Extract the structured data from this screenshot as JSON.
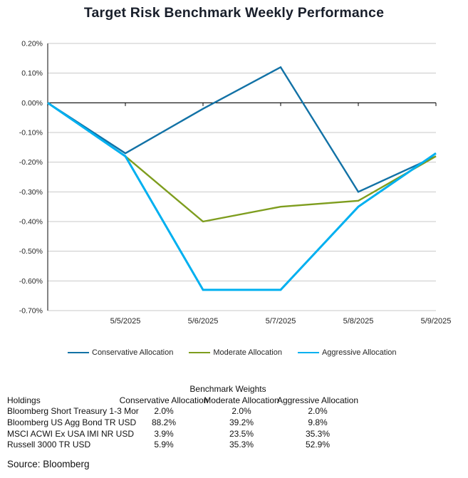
{
  "title": "Target Risk Benchmark Weekly Performance",
  "chart_data": {
    "type": "line",
    "title": "Target Risk Benchmark Weekly Performance",
    "x_labels": [
      "",
      "5/5/2025",
      "5/6/2025",
      "5/7/2025",
      "5/8/2025",
      "5/9/2025"
    ],
    "y_tick_labels": [
      "0.20%",
      "0.10%",
      "0.00%",
      "-0.10%",
      "-0.20%",
      "-0.30%",
      "-0.40%",
      "-0.50%",
      "-0.60%",
      "-0.70%"
    ],
    "y_tick_values": [
      0.2,
      0.1,
      0.0,
      -0.1,
      -0.2,
      -0.3,
      -0.4,
      -0.5,
      -0.6,
      -0.7
    ],
    "ylim": [
      -0.7,
      0.2
    ],
    "grid": "horizontal",
    "legend_position": "bottom",
    "series": [
      {
        "name": "Conservative Allocation",
        "color": "#1272A6",
        "values": [
          0.0,
          -0.17,
          -0.02,
          0.12,
          -0.3,
          -0.18
        ]
      },
      {
        "name": "Moderate Allocation",
        "color": "#7E9D1E",
        "values": [
          0.0,
          -0.18,
          -0.4,
          -0.35,
          -0.33,
          -0.18
        ]
      },
      {
        "name": "Aggressive Allocation",
        "color": "#00B0F0",
        "values": [
          0.0,
          -0.18,
          -0.63,
          -0.63,
          -0.35,
          -0.17
        ]
      }
    ]
  },
  "table": {
    "caption": "Benchmark Weights",
    "columns": [
      "Holdings",
      "Conservative Allocation",
      "Moderate Allocation",
      "Aggressive Allocation"
    ],
    "rows": [
      {
        "holding": "Bloomberg Short Treasury 1-3 Mor",
        "values": [
          "2.0%",
          "2.0%",
          "2.0%"
        ]
      },
      {
        "holding": "Bloomberg US Agg Bond TR USD",
        "values": [
          "88.2%",
          "39.2%",
          "9.8%"
        ]
      },
      {
        "holding": "MSCI ACWI Ex USA IMI NR USD",
        "values": [
          "3.9%",
          "23.5%",
          "35.3%"
        ]
      },
      {
        "holding": "Russell 3000 TR USD",
        "values": [
          "5.9%",
          "35.3%",
          "52.9%"
        ]
      }
    ]
  },
  "source": "Source: Bloomberg"
}
